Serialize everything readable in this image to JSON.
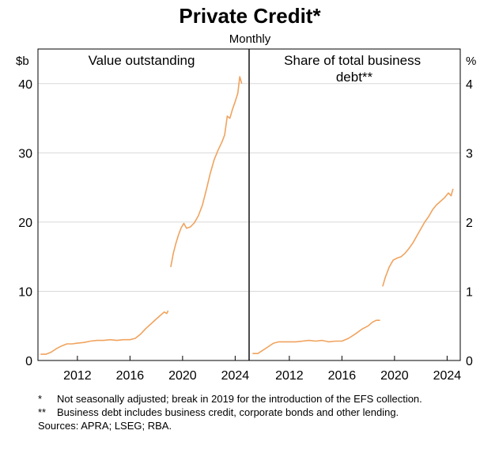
{
  "title": "Private Credit*",
  "subtitle": "Monthly",
  "left_unit": "$b",
  "right_unit": "%",
  "footnotes": [
    {
      "mark": "*",
      "text": "Not seasonally adjusted; break in 2019 for the introduction of the EFS collection."
    },
    {
      "mark": "**",
      "text": "Business debt includes business credit, corporate bonds and other lending."
    }
  ],
  "sources": "Sources: APRA; LSEG; RBA.",
  "colors": {
    "series": "#f0a35e",
    "axis": "#000000",
    "grid": "#d9d9d9"
  },
  "chart_data": [
    {
      "type": "line",
      "title": "Value outstanding",
      "ylabel": "$b",
      "ylim": [
        0,
        45
      ],
      "yticks": [
        0,
        10,
        20,
        30,
        40
      ],
      "xlim": [
        2009,
        2025
      ],
      "xticks": [
        2012,
        2016,
        2020,
        2024
      ],
      "grid": true,
      "series": [
        {
          "segment": "pre-break",
          "points": [
            [
              2009.2,
              0.9
            ],
            [
              2009.6,
              0.9
            ],
            [
              2010.0,
              1.2
            ],
            [
              2010.4,
              1.7
            ],
            [
              2010.8,
              2.1
            ],
            [
              2011.2,
              2.4
            ],
            [
              2011.6,
              2.4
            ],
            [
              2012.0,
              2.5
            ],
            [
              2012.5,
              2.6
            ],
            [
              2013.0,
              2.8
            ],
            [
              2013.5,
              2.9
            ],
            [
              2014.0,
              2.9
            ],
            [
              2014.5,
              3.0
            ],
            [
              2015.0,
              2.9
            ],
            [
              2015.5,
              3.0
            ],
            [
              2016.0,
              3.0
            ],
            [
              2016.4,
              3.2
            ],
            [
              2016.8,
              3.8
            ],
            [
              2017.2,
              4.6
            ],
            [
              2017.6,
              5.3
            ],
            [
              2018.0,
              6.0
            ],
            [
              2018.3,
              6.5
            ],
            [
              2018.6,
              7.0
            ],
            [
              2018.8,
              6.8
            ],
            [
              2018.9,
              7.2
            ]
          ]
        },
        {
          "segment": "post-break",
          "points": [
            [
              2019.1,
              13.5
            ],
            [
              2019.3,
              15.5
            ],
            [
              2019.5,
              17.0
            ],
            [
              2019.7,
              18.2
            ],
            [
              2019.9,
              19.2
            ],
            [
              2020.1,
              19.8
            ],
            [
              2020.3,
              19.1
            ],
            [
              2020.6,
              19.3
            ],
            [
              2020.9,
              19.9
            ],
            [
              2021.2,
              20.9
            ],
            [
              2021.5,
              22.4
            ],
            [
              2021.8,
              24.6
            ],
            [
              2022.1,
              27.0
            ],
            [
              2022.4,
              29.0
            ],
            [
              2022.7,
              30.4
            ],
            [
              2023.0,
              31.6
            ],
            [
              2023.2,
              32.6
            ],
            [
              2023.4,
              35.3
            ],
            [
              2023.6,
              35.0
            ],
            [
              2023.8,
              36.3
            ],
            [
              2024.0,
              37.4
            ],
            [
              2024.2,
              38.6
            ],
            [
              2024.35,
              41.0
            ],
            [
              2024.5,
              40.0
            ]
          ]
        }
      ]
    },
    {
      "type": "line",
      "title": "Share of total business debt**",
      "ylabel": "%",
      "ylim": [
        0,
        4.5
      ],
      "yticks": [
        0,
        1,
        2,
        3,
        4
      ],
      "xlim": [
        2009,
        2025
      ],
      "xticks": [
        2012,
        2016,
        2020,
        2024
      ],
      "grid": true,
      "series": [
        {
          "segment": "pre-break",
          "points": [
            [
              2009.2,
              0.1
            ],
            [
              2009.6,
              0.1
            ],
            [
              2010.0,
              0.15
            ],
            [
              2010.4,
              0.2
            ],
            [
              2010.8,
              0.25
            ],
            [
              2011.2,
              0.27
            ],
            [
              2011.6,
              0.27
            ],
            [
              2012.0,
              0.27
            ],
            [
              2012.5,
              0.27
            ],
            [
              2013.0,
              0.28
            ],
            [
              2013.5,
              0.29
            ],
            [
              2014.0,
              0.28
            ],
            [
              2014.5,
              0.29
            ],
            [
              2015.0,
              0.27
            ],
            [
              2015.5,
              0.28
            ],
            [
              2016.0,
              0.28
            ],
            [
              2016.5,
              0.32
            ],
            [
              2017.0,
              0.38
            ],
            [
              2017.5,
              0.45
            ],
            [
              2018.0,
              0.5
            ],
            [
              2018.3,
              0.55
            ],
            [
              2018.6,
              0.58
            ],
            [
              2018.9,
              0.58
            ]
          ]
        },
        {
          "segment": "post-break",
          "points": [
            [
              2019.1,
              1.07
            ],
            [
              2019.3,
              1.2
            ],
            [
              2019.6,
              1.35
            ],
            [
              2019.9,
              1.45
            ],
            [
              2020.2,
              1.48
            ],
            [
              2020.5,
              1.5
            ],
            [
              2020.8,
              1.55
            ],
            [
              2021.1,
              1.62
            ],
            [
              2021.4,
              1.7
            ],
            [
              2021.7,
              1.8
            ],
            [
              2022.0,
              1.9
            ],
            [
              2022.3,
              2.0
            ],
            [
              2022.6,
              2.08
            ],
            [
              2022.9,
              2.18
            ],
            [
              2023.2,
              2.25
            ],
            [
              2023.5,
              2.3
            ],
            [
              2023.8,
              2.35
            ],
            [
              2024.1,
              2.42
            ],
            [
              2024.3,
              2.38
            ],
            [
              2024.45,
              2.48
            ]
          ]
        }
      ]
    }
  ]
}
